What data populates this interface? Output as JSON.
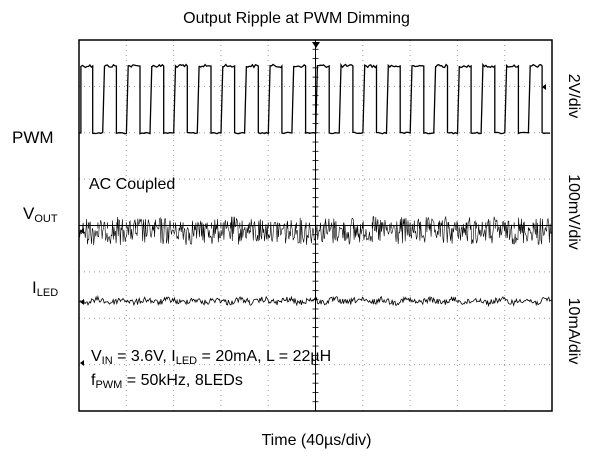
{
  "chart_data": {
    "type": "line",
    "title": "Output Ripple at PWM Dimming",
    "xlabel": "Time (40µs/div)",
    "grid": true,
    "divisions": {
      "horizontal": 10,
      "vertical": 8
    },
    "channels": [
      {
        "name": "PWM",
        "scale": "2V/div",
        "waveform": "square",
        "frequency_khz": 50,
        "duty": 0.5
      },
      {
        "name_main": "V",
        "name_sub": "OUT",
        "scale": "100mV/div",
        "waveform": "ripple"
      },
      {
        "name_main": "I",
        "name_sub": "LED",
        "scale": "10mA/div",
        "waveform": "ripple"
      }
    ],
    "annotations": {
      "coupling": "AC Coupled",
      "cond_vin_main": "V",
      "cond_vin_sub": "IN",
      "cond_vin_val": " = 3.6V, ",
      "cond_iled_main": "I",
      "cond_iled_sub": "LED",
      "cond_iled_val": " = 20mA, L = 22µH",
      "cond_f_main": "f",
      "cond_f_sub": "PWM",
      "cond_f_val": " = 50kHz, 8LEDs"
    }
  },
  "colors": {
    "trace": "#000000",
    "grid": "#9a9a9a",
    "marker": "#000000"
  }
}
